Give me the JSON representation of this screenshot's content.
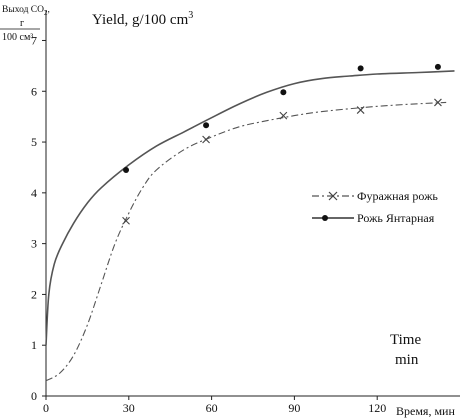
{
  "chart_data": {
    "type": "line",
    "ylabel_ru": {
      "line1": "Выход СО",
      "sub": "2",
      "line1_tail": ",",
      "line2": "г",
      "line3": "100 см³"
    },
    "title": {
      "main": "Yield, g/100 cm",
      "sup": "3"
    },
    "xlabel_ru": "Время, мин",
    "xlabel_en": {
      "line1": "Time",
      "line2": "min"
    },
    "xlim": [
      0,
      150
    ],
    "ylim": [
      0,
      7.6
    ],
    "xticks": [
      "0",
      "30",
      "60",
      "90",
      "120"
    ],
    "yticks": [
      "0",
      "1",
      "2",
      "3",
      "4",
      "5",
      "6",
      "7"
    ],
    "grid": false,
    "legend_position": "right",
    "series": [
      {
        "name": "Фуражная рожь",
        "style": "dash-dot",
        "marker": "x",
        "color": "#555555",
        "curve": [
          [
            0,
            0.3
          ],
          [
            5,
            0.45
          ],
          [
            10,
            0.8
          ],
          [
            15,
            1.4
          ],
          [
            20,
            2.2
          ],
          [
            25,
            3.0
          ],
          [
            30,
            3.6
          ],
          [
            35,
            4.1
          ],
          [
            40,
            4.45
          ],
          [
            50,
            4.85
          ],
          [
            60,
            5.1
          ],
          [
            70,
            5.3
          ],
          [
            80,
            5.42
          ],
          [
            90,
            5.52
          ],
          [
            100,
            5.6
          ],
          [
            115,
            5.68
          ],
          [
            130,
            5.74
          ],
          [
            145,
            5.78
          ]
        ],
        "points": [
          [
            29,
            3.45
          ],
          [
            58,
            5.05
          ],
          [
            86,
            5.52
          ],
          [
            114,
            5.63
          ],
          [
            142,
            5.78
          ]
        ]
      },
      {
        "name": "Рожь Янтарная",
        "style": "solid",
        "marker": "dot",
        "color": "#555555",
        "curve": [
          [
            0,
            1.0
          ],
          [
            1,
            2.0
          ],
          [
            3,
            2.6
          ],
          [
            6,
            3.0
          ],
          [
            10,
            3.4
          ],
          [
            15,
            3.8
          ],
          [
            20,
            4.1
          ],
          [
            30,
            4.55
          ],
          [
            40,
            4.92
          ],
          [
            50,
            5.2
          ],
          [
            60,
            5.48
          ],
          [
            70,
            5.75
          ],
          [
            80,
            5.98
          ],
          [
            90,
            6.15
          ],
          [
            100,
            6.25
          ],
          [
            110,
            6.3
          ],
          [
            120,
            6.34
          ],
          [
            135,
            6.37
          ],
          [
            148,
            6.4
          ]
        ],
        "points": [
          [
            29,
            4.45
          ],
          [
            58,
            5.33
          ],
          [
            86,
            5.98
          ],
          [
            114,
            6.45
          ],
          [
            142,
            6.48
          ]
        ]
      }
    ]
  }
}
